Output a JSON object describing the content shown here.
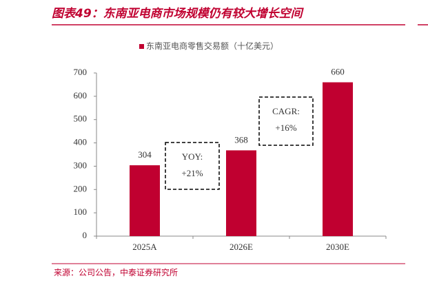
{
  "chart_data": {
    "type": "bar",
    "title": "图表49：东南亚电商市场规模仍有较大增长空间",
    "legend_label": "东南亚电商零售交易额（十亿美元）",
    "categories": [
      "2025A",
      "2026E",
      "2030E"
    ],
    "values": [
      304,
      368,
      660
    ],
    "color": "#c00030",
    "ylim": [
      0,
      700
    ],
    "yticks": [
      0,
      100,
      200,
      300,
      400,
      500,
      600,
      700
    ],
    "annotations": [
      {
        "lines": [
          "YOY:",
          "+21%"
        ]
      },
      {
        "lines": [
          "CAGR:",
          "+16%"
        ]
      }
    ],
    "source": "来源：公司公告，中泰证券研究所"
  }
}
